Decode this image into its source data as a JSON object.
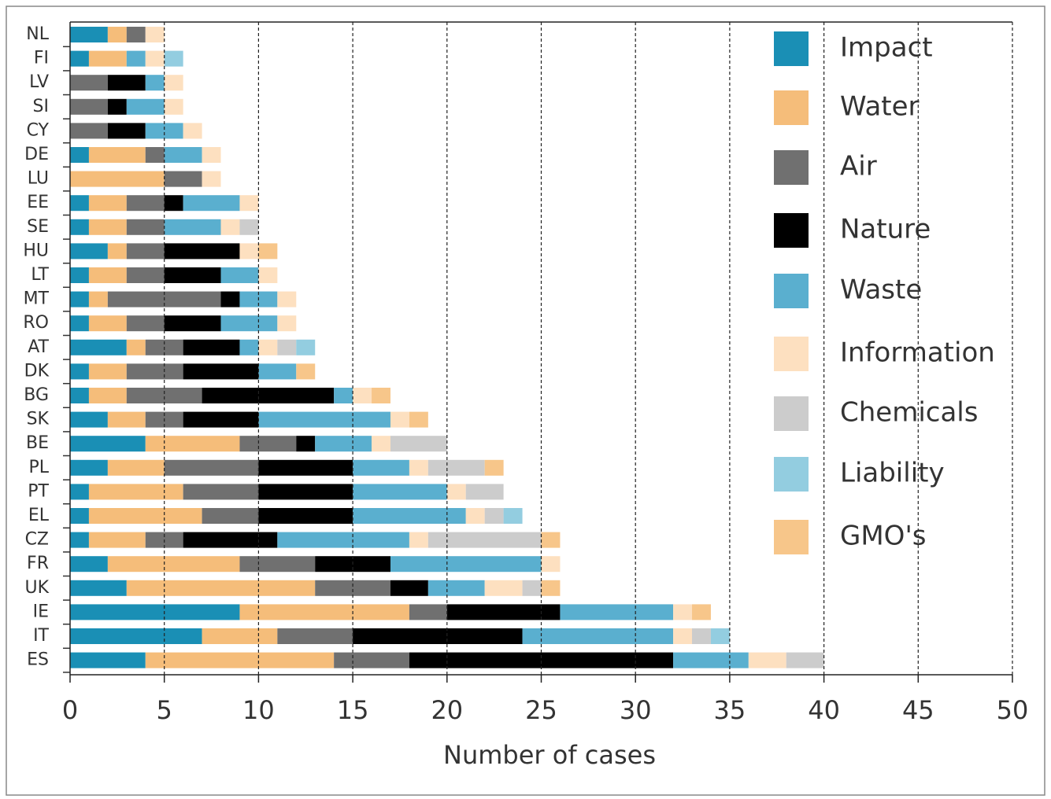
{
  "chart_data": {
    "type": "stacked-barh",
    "xlabel": "Number of cases",
    "categories": [
      "NL",
      "FI",
      "LV",
      "SI",
      "CY",
      "DE",
      "LU",
      "EE",
      "SE",
      "HU",
      "LT",
      "MT",
      "RO",
      "AT",
      "DK",
      "BG",
      "SK",
      "BE",
      "PL",
      "PT",
      "EL",
      "CZ",
      "FR",
      "UK",
      "IE",
      "IT",
      "ES"
    ],
    "series": [
      {
        "name": "Impact",
        "color": "#1a8fb5",
        "values": [
          2,
          1,
          0,
          0,
          0,
          1,
          0,
          1,
          1,
          2,
          1,
          1,
          1,
          3,
          1,
          1,
          2,
          4,
          2,
          1,
          1,
          1,
          2,
          3,
          9,
          7,
          4
        ]
      },
      {
        "name": "Water",
        "color": "#f5bd7a",
        "values": [
          1,
          2,
          0,
          0,
          0,
          3,
          5,
          2,
          2,
          1,
          2,
          1,
          2,
          1,
          2,
          2,
          2,
          5,
          3,
          5,
          6,
          3,
          7,
          10,
          9,
          4,
          10
        ]
      },
      {
        "name": "Air",
        "color": "#707070",
        "values": [
          1,
          0,
          2,
          2,
          2,
          1,
          2,
          2,
          2,
          2,
          2,
          6,
          2,
          2,
          3,
          4,
          2,
          3,
          5,
          4,
          3,
          2,
          4,
          4,
          2,
          4,
          4
        ]
      },
      {
        "name": "Nature",
        "color": "#000000",
        "values": [
          0,
          0,
          2,
          1,
          2,
          0,
          0,
          1,
          0,
          4,
          3,
          1,
          3,
          3,
          4,
          7,
          4,
          1,
          5,
          5,
          5,
          5,
          4,
          2,
          6,
          9,
          14
        ]
      },
      {
        "name": "Waste",
        "color": "#5aafcf",
        "values": [
          0,
          1,
          1,
          2,
          2,
          2,
          0,
          3,
          3,
          0,
          2,
          2,
          3,
          1,
          2,
          1,
          7,
          3,
          3,
          5,
          6,
          7,
          8,
          3,
          6,
          8,
          4
        ]
      },
      {
        "name": "Information",
        "color": "#fde0c0",
        "values": [
          1,
          1,
          1,
          1,
          1,
          1,
          1,
          1,
          1,
          1,
          1,
          1,
          1,
          1,
          0,
          1,
          1,
          1,
          1,
          1,
          1,
          1,
          1,
          2,
          1,
          1,
          2
        ]
      },
      {
        "name": "Chemicals",
        "color": "#cccccc",
        "values": [
          0,
          0,
          0,
          0,
          0,
          0,
          0,
          0,
          1,
          0,
          0,
          0,
          0,
          1,
          0,
          0,
          0,
          3,
          3,
          2,
          1,
          6,
          0,
          1,
          0,
          1,
          2
        ]
      },
      {
        "name": "Liability",
        "color": "#93cde0",
        "values": [
          0,
          1,
          0,
          0,
          0,
          0,
          0,
          0,
          0,
          0,
          0,
          0,
          0,
          1,
          0,
          0,
          0,
          0,
          0,
          0,
          1,
          0,
          0,
          0,
          0,
          1,
          0
        ]
      },
      {
        "name": "GMO's",
        "color": "#f7c68a",
        "values": [
          0,
          0,
          0,
          0,
          0,
          0,
          0,
          0,
          0,
          1,
          0,
          0,
          0,
          0,
          1,
          1,
          1,
          0,
          1,
          0,
          0,
          1,
          0,
          1,
          1,
          0,
          0
        ]
      }
    ],
    "xlim": [
      0,
      50
    ],
    "xticks": [
      0,
      5,
      10,
      15,
      20,
      25,
      30,
      35,
      40,
      45,
      50
    ],
    "grid": true
  }
}
